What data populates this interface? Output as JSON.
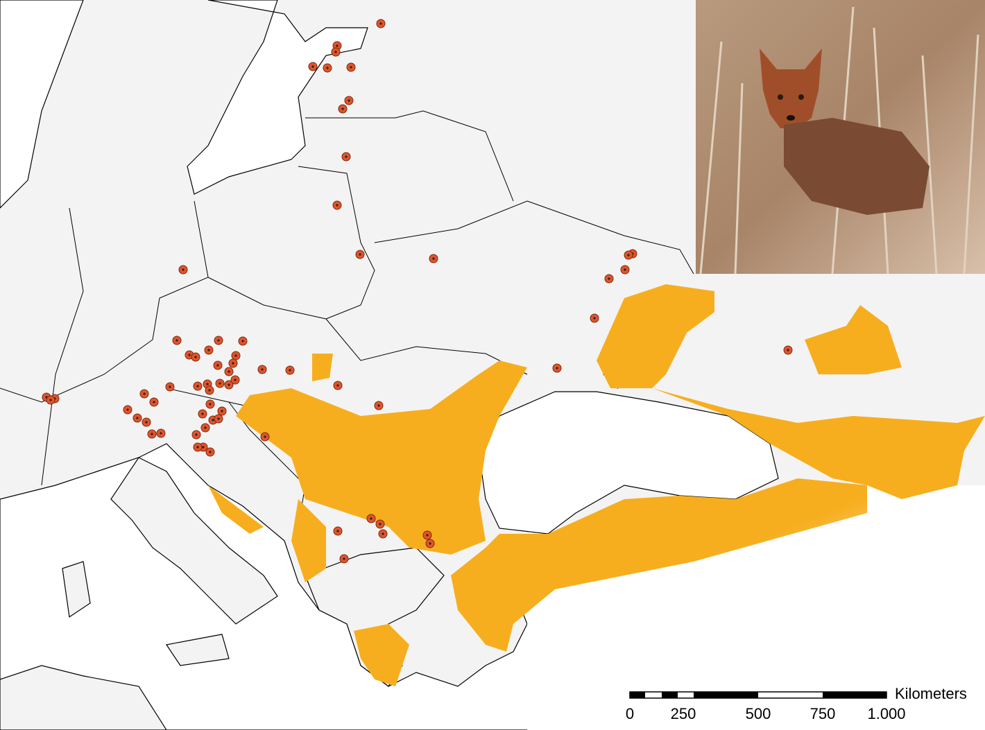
{
  "scale_bar": {
    "unit": "Kilometers",
    "ticks": [
      "0",
      "250",
      "500",
      "750",
      "1.000"
    ]
  }
}
